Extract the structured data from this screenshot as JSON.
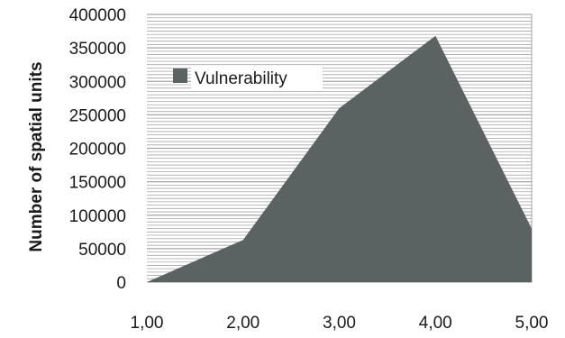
{
  "chart_data": {
    "type": "area",
    "categories": [
      "1,00",
      "2,00",
      "3,00",
      "4,00",
      "5,00"
    ],
    "series": [
      {
        "name": "Vulnerability",
        "values": [
          0,
          63000,
          260000,
          368000,
          80000
        ]
      }
    ],
    "title": "",
    "xlabel": "",
    "ylabel": "Number of spatial  units",
    "ylim": [
      0,
      400000
    ],
    "yticks": [
      "0",
      "50000",
      "100000",
      "150000",
      "200000",
      "250000",
      "300000",
      "350000",
      "400000"
    ],
    "grid": true,
    "legend": "inside top-left",
    "colors": {
      "area": "#5a6262",
      "grid": "#a6a6a6",
      "plot_background": "#ffffff"
    }
  }
}
